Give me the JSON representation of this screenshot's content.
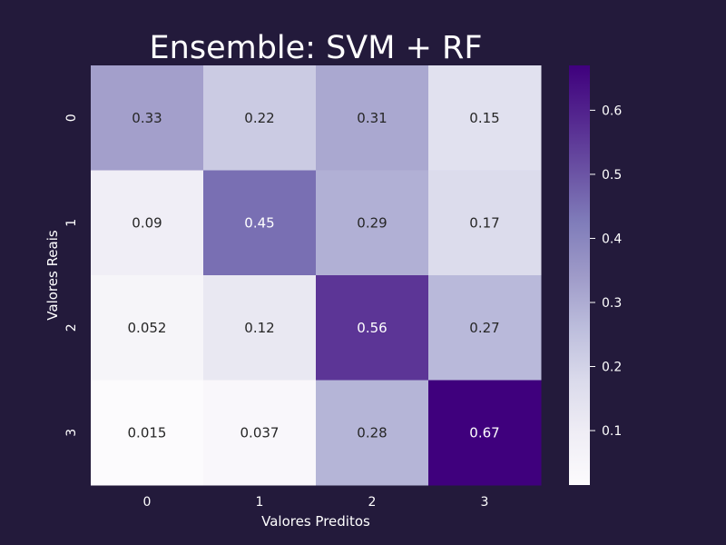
{
  "chart_data": {
    "type": "heatmap",
    "title": "Ensemble: SVM + RF",
    "xlabel": "Valores Preditos",
    "ylabel": "Valores Reais",
    "x_categories": [
      "0",
      "1",
      "2",
      "3"
    ],
    "y_categories": [
      "0",
      "1",
      "2",
      "3"
    ],
    "values": [
      [
        0.33,
        0.22,
        0.31,
        0.15
      ],
      [
        0.09,
        0.45,
        0.29,
        0.17
      ],
      [
        0.052,
        0.12,
        0.56,
        0.27
      ],
      [
        0.015,
        0.037,
        0.28,
        0.67
      ]
    ],
    "cell_labels": [
      [
        "0.33",
        "0.22",
        "0.31",
        "0.15"
      ],
      [
        "0.09",
        "0.45",
        "0.29",
        "0.17"
      ],
      [
        "0.052",
        "0.12",
        "0.56",
        "0.27"
      ],
      [
        "0.015",
        "0.037",
        "0.28",
        "0.67"
      ]
    ],
    "colorbar": {
      "min": 0.015,
      "max": 0.67,
      "ticks": [
        "0.1",
        "0.2",
        "0.3",
        "0.4",
        "0.5",
        "0.6"
      ],
      "colormap": "Purples",
      "low_color": "#fcfbfd",
      "high_color": "#3f007d"
    },
    "grid": false
  },
  "colors": {
    "background": "#231a3b",
    "text": "#ffffff"
  }
}
